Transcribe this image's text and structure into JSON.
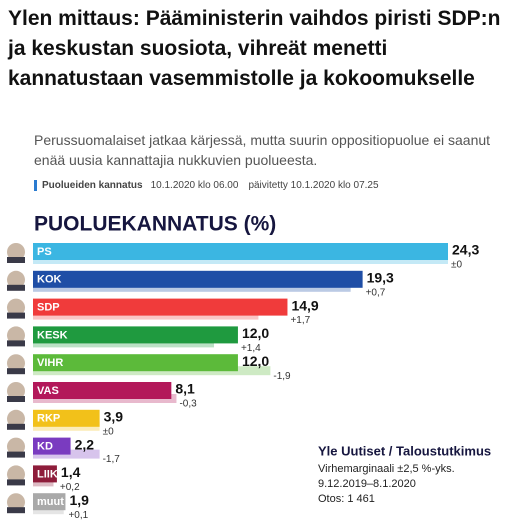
{
  "article": {
    "headline": "Ylen mittaus: Pääministerin vaihdos piristi SDP:n ja keskustan suosiota, vihreät menetti kannatustaan vasemmistolle ja kokoomukselle",
    "lead": "Perussuomalaiset jatkaa kärjessä, mutta suurin oppositiopuolue ei saanut enää uusia kannattajia nukkuvien puolueesta.",
    "tag": "Puolueiden kannatus",
    "published": "10.1.2020 klo 06.00",
    "updated": "päivitetty 10.1.2020 klo 07.25"
  },
  "chart_data": {
    "type": "bar",
    "orientation": "horizontal",
    "title": "PUOLUEKANNATUS (%)",
    "categories": [
      "PS",
      "KOK",
      "SDP",
      "KESK",
      "VIHR",
      "VAS",
      "RKP",
      "KD",
      "LIIK",
      "muut"
    ],
    "values": [
      24.3,
      19.3,
      14.9,
      12.0,
      12.0,
      8.1,
      3.9,
      2.2,
      1.4,
      1.9
    ],
    "value_labels": [
      "24,3",
      "19,3",
      "14,9",
      "12,0",
      "12,0",
      "8,1",
      "3,9",
      "2,2",
      "1,4",
      "1,9"
    ],
    "changes": [
      0,
      0.7,
      1.7,
      1.4,
      -1.9,
      -0.3,
      0,
      -1.7,
      0.2,
      0.1
    ],
    "change_labels": [
      "±0",
      "+0,7",
      "+1,7",
      "+1,4",
      "-1,9",
      "-0,3",
      "±0",
      "-1,7",
      "+0,2",
      "+0,1"
    ],
    "colors": [
      "#3bb6e2",
      "#1f4ea6",
      "#f03b3b",
      "#1f9a3f",
      "#5cba3a",
      "#b3185a",
      "#f2c11a",
      "#7a3bc0",
      "#8e1d3b",
      "#a9a9a9"
    ],
    "source": "Yle Uutiset / Taloustutkimus",
    "notes": [
      "Virhemarginaali ±2,5 %-yks.",
      "9.12.2019–8.1.2020",
      "Otos: 1 461"
    ]
  }
}
